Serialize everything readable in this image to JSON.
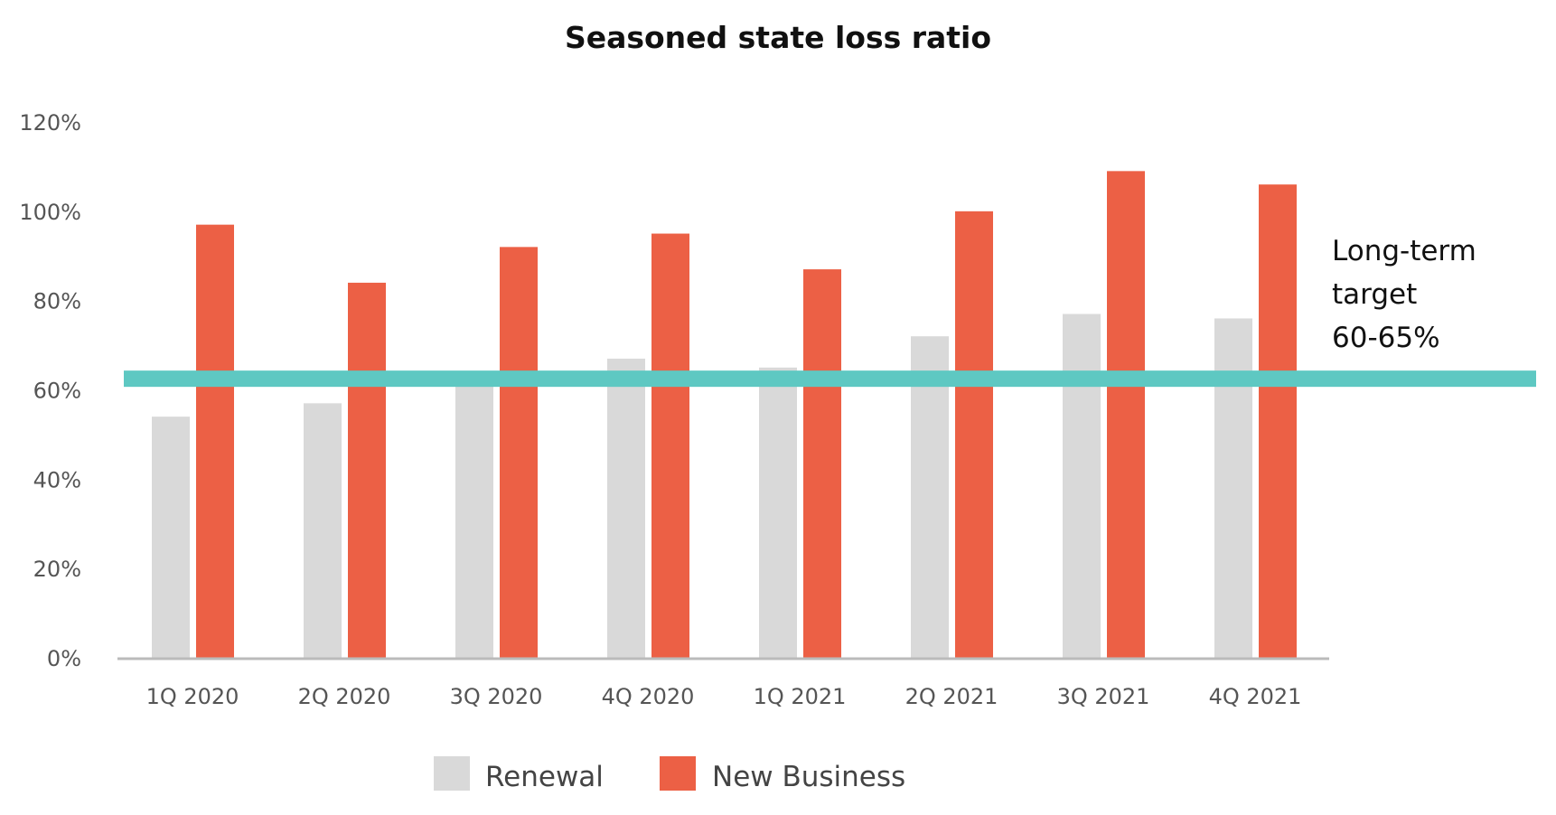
{
  "chart_data": {
    "type": "bar",
    "title": "Seasoned state loss ratio",
    "xlabel": "",
    "ylabel": "",
    "ylim": [
      0,
      120
    ],
    "yticks": [
      "0%",
      "20%",
      "40%",
      "60%",
      "80%",
      "100%",
      "120%"
    ],
    "ytick_values": [
      0,
      20,
      40,
      60,
      80,
      100,
      120
    ],
    "grid": false,
    "categories": [
      "1Q 2020",
      "2Q 2020",
      "3Q 2020",
      "4Q 2020",
      "1Q 2021",
      "2Q 2021",
      "3Q 2021",
      "4Q 2021"
    ],
    "series": [
      {
        "name": "Renewal",
        "color": "#d9d9d9",
        "values": [
          54,
          57,
          61,
          67,
          65,
          72,
          77,
          76
        ]
      },
      {
        "name": "New Business",
        "color": "#ec6045",
        "values": [
          97,
          84,
          92,
          95,
          87,
          100,
          109,
          106
        ]
      }
    ],
    "reference_line": {
      "value": 62.5,
      "color": "#5ec8c2",
      "label_lines": [
        "Long-term",
        "target",
        "60-65%"
      ]
    },
    "legend": {
      "placement": "bottom"
    }
  }
}
